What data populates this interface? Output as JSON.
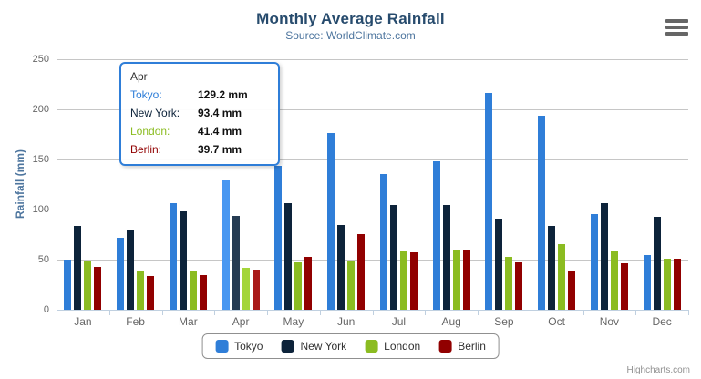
{
  "chart_data": {
    "type": "bar",
    "title": "Monthly Average Rainfall",
    "subtitle": "Source: WorldClimate.com",
    "ylabel": "Rainfall (mm)",
    "xlabel": "",
    "ylim": [
      0,
      250
    ],
    "yticks": [
      0,
      50,
      100,
      150,
      200,
      250
    ],
    "grid": true,
    "legend_position": "bottom",
    "categories": [
      "Jan",
      "Feb",
      "Mar",
      "Apr",
      "May",
      "Jun",
      "Jul",
      "Aug",
      "Sep",
      "Oct",
      "Nov",
      "Dec"
    ],
    "highlighted_category": "Apr",
    "series": [
      {
        "name": "Tokyo",
        "color": "#2f7ed8",
        "hover_color": "#4897f1",
        "values": [
          49.9,
          71.5,
          106.4,
          129.2,
          144.0,
          176.0,
          135.6,
          148.5,
          216.4,
          194.1,
          95.6,
          54.4
        ]
      },
      {
        "name": "New York",
        "color": "#0d233a",
        "hover_color": "#263c53",
        "values": [
          83.6,
          78.8,
          98.5,
          93.4,
          106.0,
          84.5,
          105.0,
          104.3,
          91.2,
          83.5,
          106.6,
          92.3
        ]
      },
      {
        "name": "London",
        "color": "#8bbc21",
        "hover_color": "#a4d53a",
        "values": [
          48.9,
          38.8,
          39.3,
          41.4,
          47.0,
          48.3,
          59.0,
          59.6,
          52.4,
          65.2,
          59.3,
          51.2
        ]
      },
      {
        "name": "Berlin",
        "color": "#910000",
        "hover_color": "#aa1919",
        "values": [
          42.4,
          33.2,
          34.5,
          39.7,
          52.6,
          75.5,
          57.4,
          60.4,
          47.6,
          39.1,
          46.8,
          51.1
        ]
      }
    ]
  },
  "tooltip": {
    "header": "Apr",
    "border_color": "#2f7ed8",
    "rows": [
      {
        "label": "Tokyo:",
        "value": "129.2 mm",
        "color": "#2f7ed8"
      },
      {
        "label": "New York:",
        "value": "93.4 mm",
        "color": "#0d233a"
      },
      {
        "label": "London:",
        "value": "41.4 mm",
        "color": "#8bbc21"
      },
      {
        "label": "Berlin:",
        "value": "39.7 mm",
        "color": "#910000"
      }
    ]
  },
  "colors": {
    "title": "#274b6d",
    "subtitle": "#4d759e",
    "axis_labels": "#666666",
    "grid": "#c6c6c6",
    "axis_line": "#c0d0e0",
    "legend_border": "#909090"
  },
  "credits": {
    "label": "Highcharts.com"
  }
}
